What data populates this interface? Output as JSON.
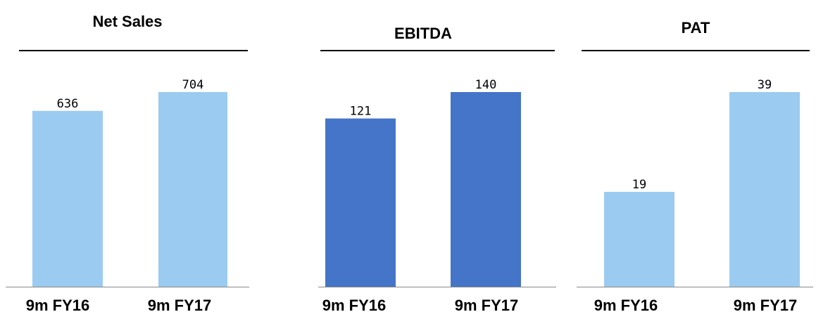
{
  "chart_data": [
    {
      "type": "bar",
      "title": "Net Sales",
      "categories": [
        "9m FY16",
        "9m FY17"
      ],
      "values": [
        636,
        704
      ],
      "data_labels": [
        "636",
        "704"
      ],
      "ylim": [
        0,
        704
      ],
      "grid": false,
      "bar_color": "#9BCBF0"
    },
    {
      "type": "bar",
      "title": "EBITDA",
      "categories": [
        "9m FY16",
        "9m FY17"
      ],
      "values": [
        121,
        140
      ],
      "data_labels": [
        "121",
        "140"
      ],
      "ylim": [
        0,
        140
      ],
      "grid": false,
      "bar_color": "#4575C8"
    },
    {
      "type": "bar",
      "title": "PAT",
      "categories": [
        "9m FY16",
        "9m FY17"
      ],
      "values": [
        19,
        39
      ],
      "data_labels": [
        "19",
        "39"
      ],
      "ylim": [
        0,
        39
      ],
      "grid": false,
      "bar_color": "#9BCBF0"
    }
  ]
}
